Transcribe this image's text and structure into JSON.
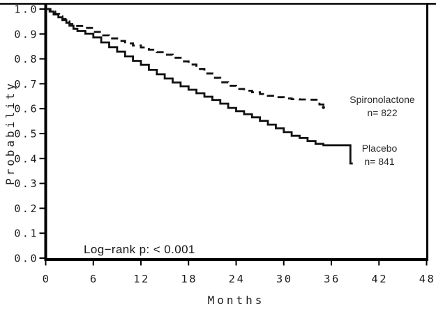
{
  "chart_data": {
    "type": "line",
    "subtype": "kaplan-meier-step",
    "title": "",
    "xlabel": "Months",
    "ylabel": "Probability",
    "xlim": [
      0,
      48
    ],
    "ylim": [
      0.0,
      1.0
    ],
    "grid": false,
    "frame": true,
    "annotation": "Log−rank p:  < 0.001",
    "x_ticks": [
      0,
      6,
      12,
      18,
      24,
      30,
      36,
      42,
      48
    ],
    "y_ticks": [
      {
        "v": 0.0,
        "label": "0.0"
      },
      {
        "v": 0.1,
        "label": "0.1"
      },
      {
        "v": 0.2,
        "label": "0.2"
      },
      {
        "v": 0.3,
        "label": "0.3"
      },
      {
        "v": 0.4,
        "label": "0.4"
      },
      {
        "v": 0.5,
        "label": "0.5"
      },
      {
        "v": 0.6,
        "label": "0.6"
      },
      {
        "v": 0.7,
        "label": "0.7"
      },
      {
        "v": 0.8,
        "label": "0.8"
      },
      {
        "v": 0.9,
        "label": "0.9"
      },
      {
        "v": 1.0,
        "label": "1.0"
      }
    ],
    "colors": {
      "line": "#111111",
      "axis": "#000000",
      "background": "#ffffff"
    },
    "series": [
      {
        "name": "Spironolactone",
        "n": 822,
        "style": "dashed",
        "end_dot": true,
        "label_lines": [
          "Spironolactone",
          "n= 822"
        ],
        "points": [
          [
            0,
            1.0
          ],
          [
            0.6,
            0.99
          ],
          [
            1.2,
            0.98
          ],
          [
            1.7,
            0.97
          ],
          [
            2.1,
            0.96
          ],
          [
            2.5,
            0.95
          ],
          [
            3,
            0.94
          ],
          [
            3.6,
            0.932
          ],
          [
            5,
            0.924
          ],
          [
            6,
            0.908
          ],
          [
            7,
            0.894
          ],
          [
            8,
            0.882
          ],
          [
            9,
            0.872
          ],
          [
            10,
            0.862
          ],
          [
            11,
            0.854
          ],
          [
            12,
            0.846
          ],
          [
            13,
            0.837
          ],
          [
            14,
            0.827
          ],
          [
            15,
            0.817
          ],
          [
            16,
            0.804
          ],
          [
            17,
            0.79
          ],
          [
            18,
            0.777
          ],
          [
            19,
            0.759
          ],
          [
            20,
            0.741
          ],
          [
            21,
            0.724
          ],
          [
            22,
            0.706
          ],
          [
            23,
            0.692
          ],
          [
            24,
            0.679
          ],
          [
            25,
            0.672
          ],
          [
            26,
            0.666
          ],
          [
            27,
            0.659
          ],
          [
            28,
            0.652
          ],
          [
            29,
            0.646
          ],
          [
            30,
            0.641
          ],
          [
            31,
            0.638
          ],
          [
            32,
            0.637
          ],
          [
            33,
            0.636
          ],
          [
            34.5,
            0.635
          ],
          [
            34.5,
            0.617
          ],
          [
            35,
            0.605
          ]
        ]
      },
      {
        "name": "Placebo",
        "n": 841,
        "style": "solid",
        "end_dot": false,
        "label_lines": [
          "Placebo",
          "n= 841"
        ],
        "points": [
          [
            0,
            1.0
          ],
          [
            0.5,
            0.99
          ],
          [
            1,
            0.978
          ],
          [
            1.6,
            0.967
          ],
          [
            2.1,
            0.956
          ],
          [
            2.6,
            0.945
          ],
          [
            3,
            0.933
          ],
          [
            3.5,
            0.921
          ],
          [
            4,
            0.912
          ],
          [
            5,
            0.901
          ],
          [
            6,
            0.886
          ],
          [
            7,
            0.866
          ],
          [
            8,
            0.847
          ],
          [
            9,
            0.829
          ],
          [
            10,
            0.81
          ],
          [
            11,
            0.792
          ],
          [
            12,
            0.776
          ],
          [
            13,
            0.756
          ],
          [
            14,
            0.738
          ],
          [
            15,
            0.721
          ],
          [
            16,
            0.705
          ],
          [
            17,
            0.69
          ],
          [
            18,
            0.676
          ],
          [
            19,
            0.662
          ],
          [
            20,
            0.648
          ],
          [
            21,
            0.635
          ],
          [
            22,
            0.62
          ],
          [
            23,
            0.603
          ],
          [
            24,
            0.59
          ],
          [
            25,
            0.578
          ],
          [
            26,
            0.565
          ],
          [
            27,
            0.551
          ],
          [
            28,
            0.536
          ],
          [
            29,
            0.521
          ],
          [
            30,
            0.506
          ],
          [
            31,
            0.491
          ],
          [
            32,
            0.482
          ],
          [
            33,
            0.47
          ],
          [
            34,
            0.459
          ],
          [
            35,
            0.453
          ],
          [
            38.4,
            0.451
          ],
          [
            38.4,
            0.38
          ],
          [
            38.7,
            0.38
          ]
        ]
      }
    ]
  }
}
